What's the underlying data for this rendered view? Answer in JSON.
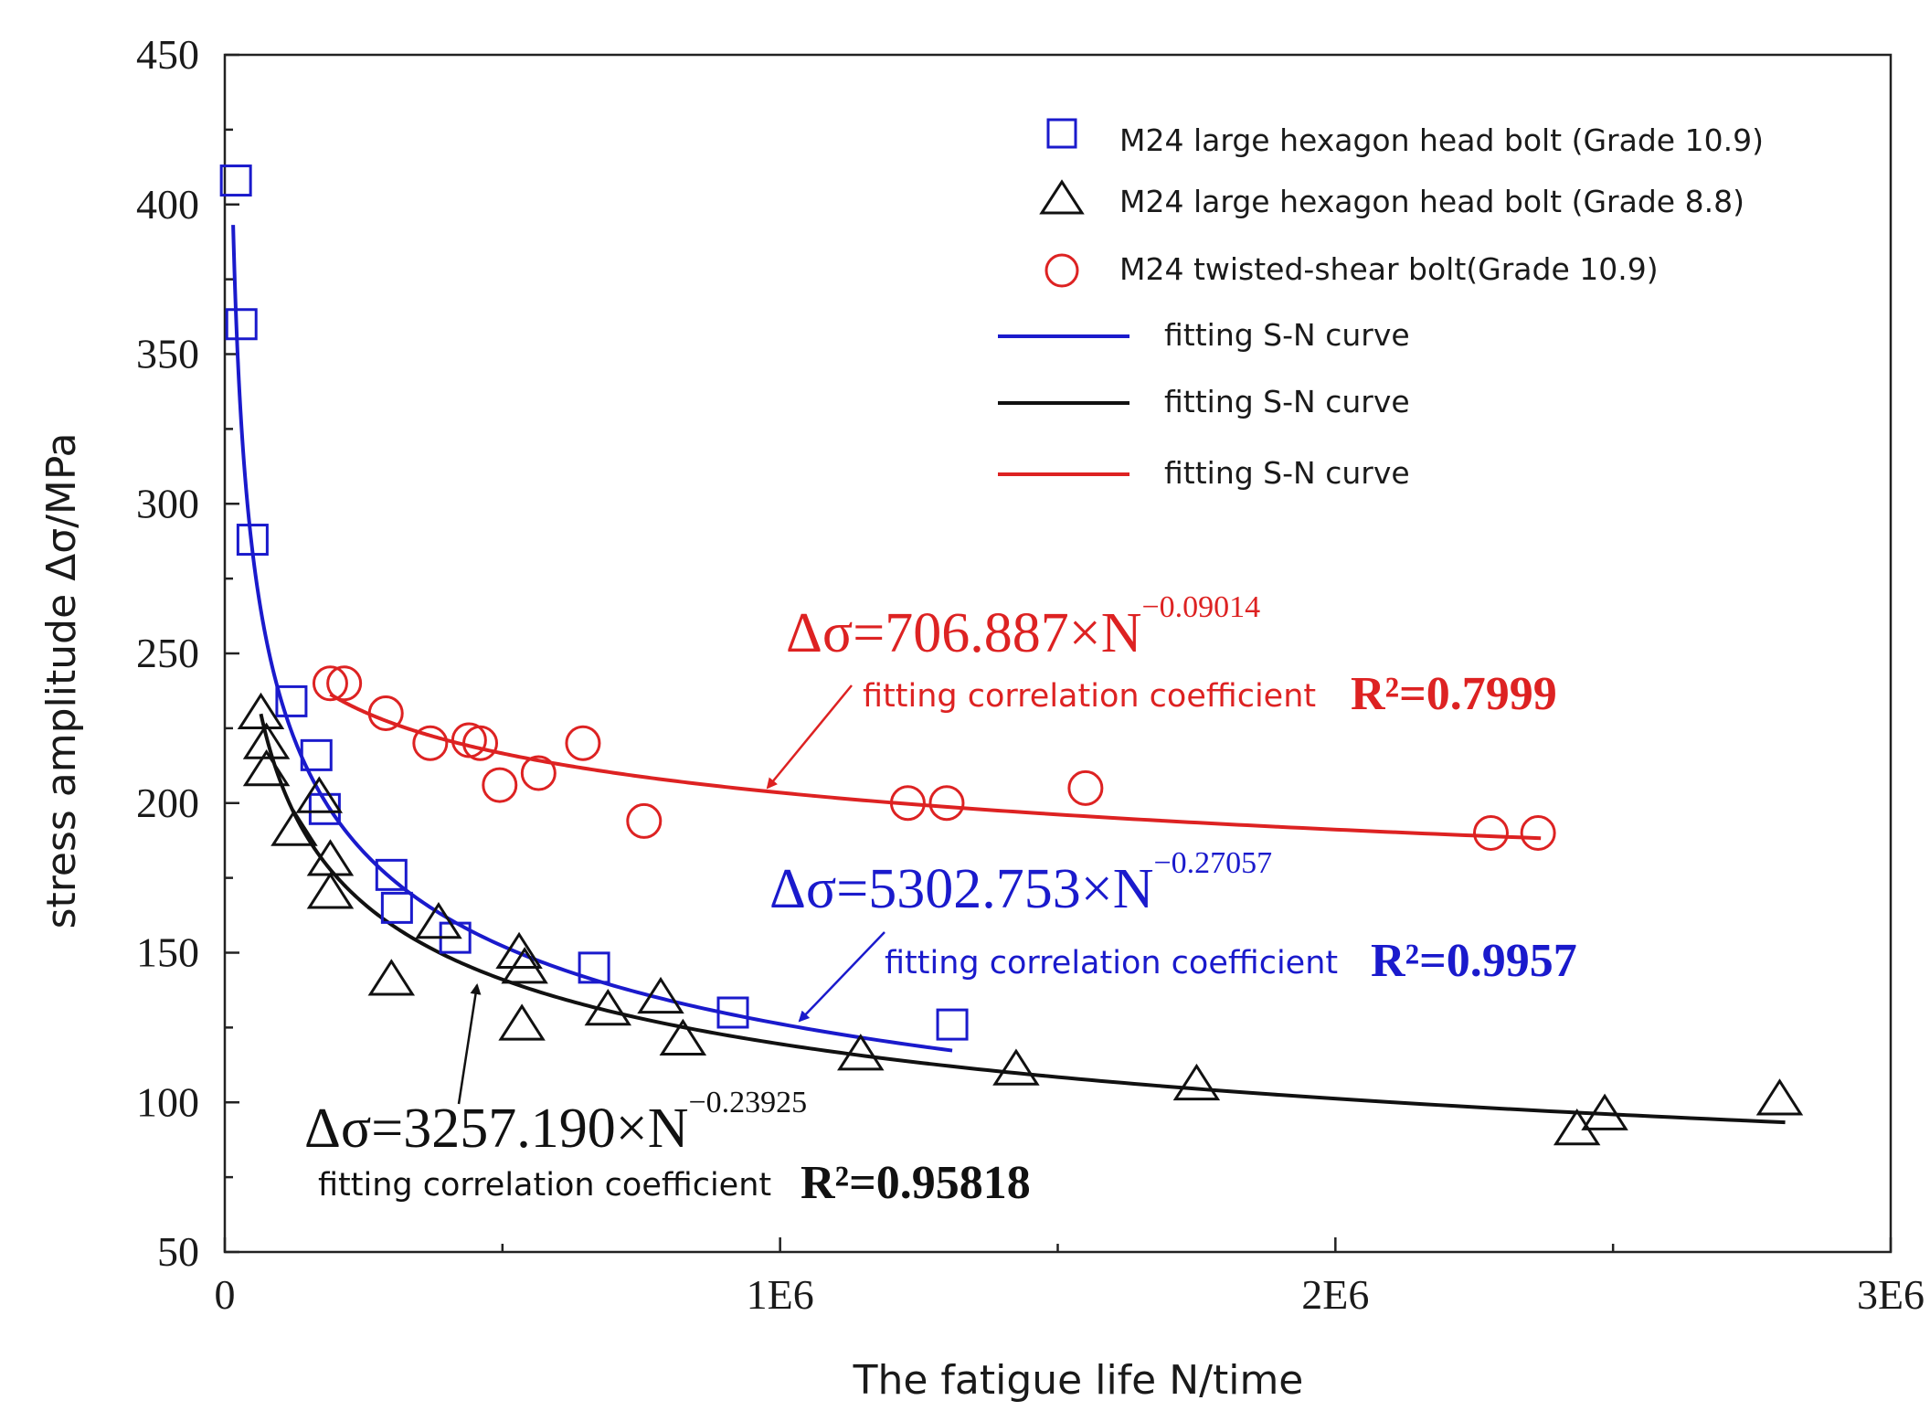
{
  "chart_data": {
    "type": "scatter",
    "title": "",
    "xlabel": "The fatigue life N/time",
    "ylabel": "stress amplitude  Δσ/MPa",
    "xlim": [
      0,
      3000000
    ],
    "ylim": [
      50,
      450
    ],
    "x_ticks": [
      {
        "value": 0,
        "label": "0"
      },
      {
        "value": 1000000,
        "label": "1E6"
      },
      {
        "value": 2000000,
        "label": "2E6"
      },
      {
        "value": 3000000,
        "label": "3E6"
      }
    ],
    "y_ticks": [
      {
        "value": 50,
        "label": "50"
      },
      {
        "value": 100,
        "label": "100"
      },
      {
        "value": 150,
        "label": "150"
      },
      {
        "value": 200,
        "label": "200"
      },
      {
        "value": 250,
        "label": "250"
      },
      {
        "value": 300,
        "label": "300"
      },
      {
        "value": 350,
        "label": "350"
      },
      {
        "value": 400,
        "label": "400"
      },
      {
        "value": 450,
        "label": "450"
      }
    ],
    "grid": false,
    "legend_position": "top-right",
    "series": [
      {
        "name": "M24 large hexagon head bolt (Grade 10.9)",
        "marker": "square",
        "color": "#1a1acc",
        "points": [
          [
            20000,
            408
          ],
          [
            30000,
            360
          ],
          [
            50000,
            288
          ],
          [
            120000,
            234
          ],
          [
            165000,
            216
          ],
          [
            180000,
            198
          ],
          [
            300000,
            176
          ],
          [
            310000,
            165
          ],
          [
            415000,
            155
          ],
          [
            665000,
            145
          ],
          [
            915000,
            130
          ],
          [
            1310000,
            126
          ]
        ]
      },
      {
        "name": "M24 large hexagon head bolt (Grade 8.8)",
        "marker": "triangle",
        "color": "#111111",
        "points": [
          [
            65000,
            230
          ],
          [
            75000,
            220
          ],
          [
            75000,
            211
          ],
          [
            125000,
            191
          ],
          [
            170000,
            202
          ],
          [
            190000,
            181
          ],
          [
            190000,
            170
          ],
          [
            300000,
            141
          ],
          [
            385000,
            160
          ],
          [
            530000,
            150
          ],
          [
            540000,
            145
          ],
          [
            535000,
            126
          ],
          [
            690000,
            131
          ],
          [
            785000,
            135
          ],
          [
            825000,
            121
          ],
          [
            1145000,
            116
          ],
          [
            1425000,
            111
          ],
          [
            1750000,
            106
          ],
          [
            2435000,
            91
          ],
          [
            2485000,
            96
          ],
          [
            2800000,
            101
          ]
        ]
      },
      {
        "name": "M24 twisted-shear bolt(Grade 10.9)",
        "marker": "circle",
        "color": "#dd2222",
        "points": [
          [
            190000,
            240
          ],
          [
            215000,
            240
          ],
          [
            290000,
            230
          ],
          [
            370000,
            220
          ],
          [
            440000,
            221
          ],
          [
            460000,
            220
          ],
          [
            495000,
            206
          ],
          [
            565000,
            210
          ],
          [
            645000,
            220
          ],
          [
            755000,
            194
          ],
          [
            1230000,
            200
          ],
          [
            1300000,
            200
          ],
          [
            1550000,
            205
          ],
          [
            2280000,
            190
          ],
          [
            2365000,
            190
          ]
        ]
      }
    ],
    "fit_lines": [
      {
        "name": "fitting S-N curve",
        "color": "#1a1acc",
        "coefficient": 5302.753,
        "exponent": -0.27057,
        "x_range": [
          15000,
          1310000
        ]
      },
      {
        "name": "fitting S-N curve",
        "color": "#111111",
        "coefficient": 3257.19,
        "exponent": -0.23925,
        "x_range": [
          65000,
          2810000
        ]
      },
      {
        "name": "fitting S-N curve",
        "color": "#dd2222",
        "coefficient": 706.887,
        "exponent": -0.09014,
        "x_range": [
          190000,
          2370000
        ]
      }
    ],
    "annotations": {
      "red": {
        "eq_prefix": "Δσ=706.887×N",
        "eq_exponent": "−0.09014",
        "corr_label": "fitting correlation coefficient",
        "r2": "R²=0.7999"
      },
      "blue": {
        "eq_prefix": "Δσ=5302.753×N",
        "eq_exponent": "−0.27057",
        "corr_label": "fitting correlation coefficient",
        "r2": "R²=0.9957"
      },
      "black": {
        "eq_prefix": "Δσ=3257.190×N",
        "eq_exponent": "−0.23925",
        "corr_label": "fitting correlation coefficient",
        "r2": "R²=0.95818"
      }
    }
  }
}
